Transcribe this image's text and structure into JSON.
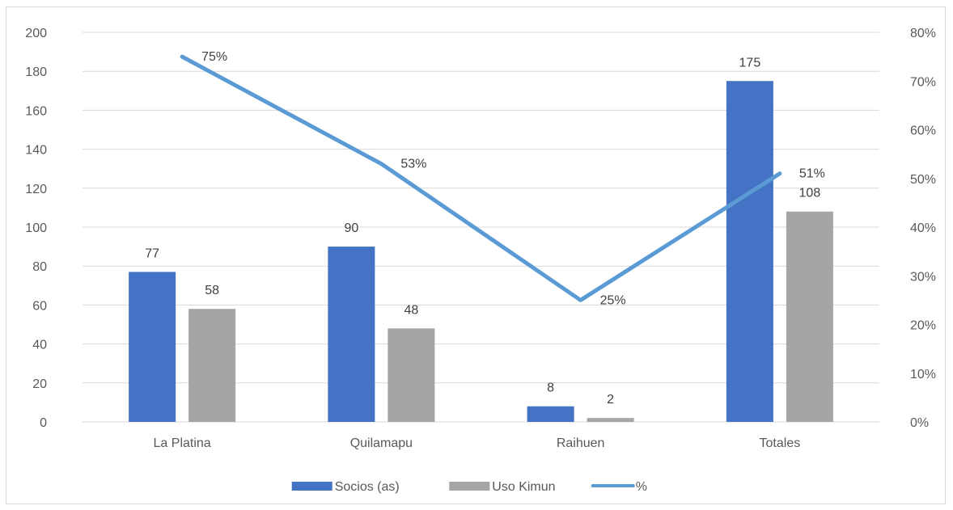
{
  "chart_data": {
    "type": "bar",
    "categories": [
      "La Platina",
      "Quilamapu",
      "Raihuen",
      "Totales"
    ],
    "series": [
      {
        "name": "Socios (as)",
        "type": "bar",
        "axis": "left",
        "values": [
          77,
          90,
          8,
          175
        ],
        "labels": [
          "77",
          "90",
          "8",
          "175"
        ],
        "color": "#4472c4"
      },
      {
        "name": "Uso Kimun",
        "type": "bar",
        "axis": "left",
        "values": [
          58,
          48,
          2,
          108
        ],
        "labels": [
          "58",
          "48",
          "2",
          "108"
        ],
        "color": "#a5a5a5"
      },
      {
        "name": "%",
        "type": "line",
        "axis": "right",
        "values": [
          75,
          53,
          25,
          51
        ],
        "labels": [
          "75%",
          "53%",
          "25%",
          "51%"
        ],
        "color": "#5b9bd5"
      }
    ],
    "y_left": {
      "min": 0,
      "max": 200,
      "step": 20,
      "ticks": [
        "0",
        "20",
        "40",
        "60",
        "80",
        "100",
        "120",
        "140",
        "160",
        "180",
        "200"
      ]
    },
    "y_right": {
      "min": 0,
      "max": 80,
      "step": 10,
      "ticks": [
        "0%",
        "10%",
        "20%",
        "30%",
        "40%",
        "50%",
        "60%",
        "70%",
        "80%"
      ]
    },
    "grid": true,
    "legend_position": "bottom",
    "gridline_color": "#d9d9d9"
  }
}
